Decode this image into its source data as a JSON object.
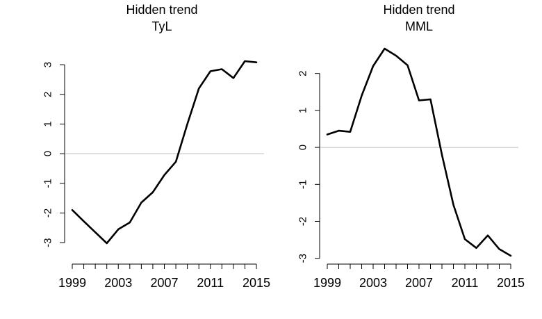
{
  "figure": {
    "background": "#ffffff",
    "line_color": "#000000",
    "zero_line_color": "#bebebe"
  },
  "chart_data": [
    {
      "type": "line",
      "title": "Hidden trend",
      "subtitle": "TyL",
      "xlabel": "",
      "ylabel": "",
      "x": [
        1999,
        2000,
        2001,
        2002,
        2003,
        2004,
        2005,
        2006,
        2007,
        2008,
        2009,
        2010,
        2011,
        2012,
        2013,
        2014,
        2015
      ],
      "series": [
        {
          "values": [
            -1.9,
            -2.28,
            -2.65,
            -3.02,
            -2.55,
            -2.32,
            -1.65,
            -1.3,
            -0.72,
            -0.27,
            1.0,
            2.2,
            2.78,
            2.85,
            2.55,
            3.12,
            3.08
          ]
        }
      ],
      "xlim": [
        1999,
        2015
      ],
      "x_ticks": [
        1999,
        2000,
        2001,
        2002,
        2003,
        2004,
        2005,
        2006,
        2007,
        2008,
        2009,
        2010,
        2011,
        2012,
        2013,
        2014,
        2015
      ],
      "x_tick_labels": [
        "1999",
        "2003",
        "2007",
        "2011",
        "2015"
      ],
      "ylim": [
        -3.02,
        3.12
      ],
      "y_ticks": [
        -3,
        -2,
        -1,
        0,
        1,
        2,
        3
      ],
      "y_tick_labels": [
        "-3",
        "-2",
        "-1",
        "0",
        "1",
        "2",
        "3"
      ],
      "reference_line": 0,
      "grid": false
    },
    {
      "type": "line",
      "title": "Hidden trend",
      "subtitle": "MML",
      "xlabel": "",
      "ylabel": "",
      "x": [
        1999,
        2000,
        2001,
        2002,
        2003,
        2004,
        2005,
        2006,
        2007,
        2008,
        2009,
        2010,
        2011,
        2012,
        2013,
        2014,
        2015
      ],
      "series": [
        {
          "values": [
            0.35,
            0.45,
            0.42,
            1.4,
            2.2,
            2.67,
            2.48,
            2.22,
            1.27,
            1.3,
            -0.2,
            -1.55,
            -2.48,
            -2.72,
            -2.38,
            -2.75,
            -2.93
          ]
        }
      ],
      "xlim": [
        1999,
        2015
      ],
      "x_ticks": [
        1999,
        2000,
        2001,
        2002,
        2003,
        2004,
        2005,
        2006,
        2007,
        2008,
        2009,
        2010,
        2011,
        2012,
        2013,
        2014,
        2015
      ],
      "x_tick_labels": [
        "1999",
        "2003",
        "2007",
        "2011",
        "2015"
      ],
      "ylim": [
        -2.93,
        2.67
      ],
      "y_ticks": [
        -3,
        -2,
        -1,
        0,
        1,
        2
      ],
      "y_tick_labels": [
        "-3",
        "-2",
        "-1",
        "0",
        "1",
        "2"
      ],
      "reference_line": 0,
      "grid": false
    }
  ]
}
